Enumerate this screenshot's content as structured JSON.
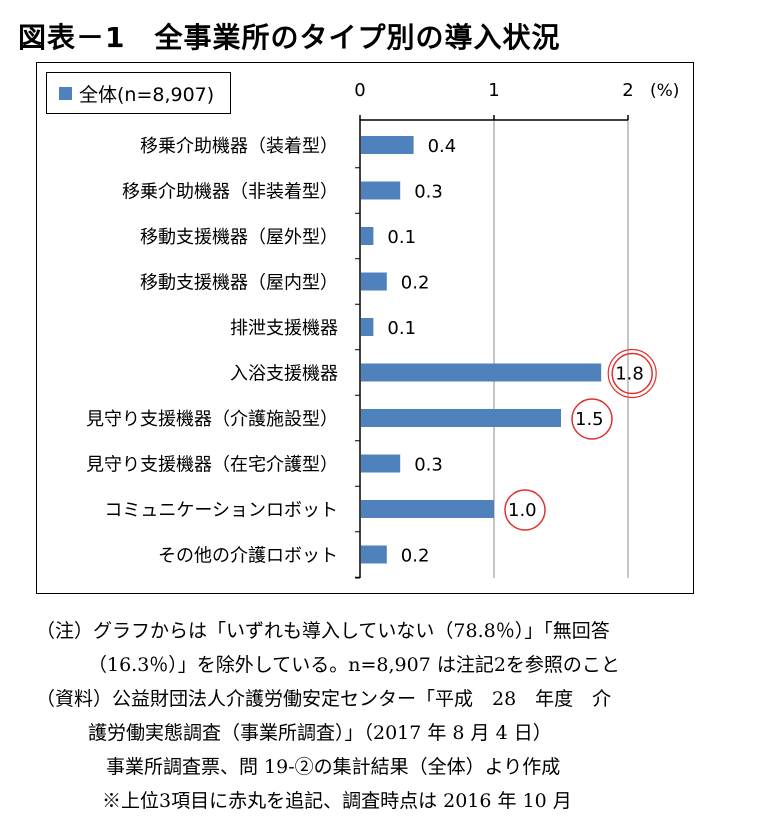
{
  "title": "図表－1　全事業所のタイプ別の導入状況",
  "legend": {
    "label": "全体(n=8,907)",
    "color": "#4f81bd"
  },
  "chart_data": {
    "type": "bar",
    "orientation": "horizontal",
    "categories": [
      "移乗介助機器（装着型）",
      "移乗介助機器（非装着型）",
      "移動支援機器（屋外型）",
      "移動支援機器（屋内型）",
      "排泄支援機器",
      "入浴支援機器",
      "見守り支援機器（介護施設型）",
      "見守り支援機器（在宅介護型）",
      "コミュニケーションロボット",
      "その他の介護ロボット"
    ],
    "series": [
      {
        "name": "全体(n=8,907)",
        "values": [
          0.4,
          0.3,
          0.1,
          0.2,
          0.1,
          1.8,
          1.5,
          0.3,
          1.0,
          0.2
        ]
      }
    ],
    "value_labels": [
      "0.4",
      "0.3",
      "0.1",
      "0.2",
      "0.1",
      "1.8",
      "1.5",
      "0.3",
      "1.0",
      "0.2"
    ],
    "xlim": [
      0,
      2
    ],
    "xticks": [
      "0",
      "1",
      "2"
    ],
    "xunit": "(%)",
    "grid": true,
    "legend_position": "top-left",
    "highlighted": [
      5,
      6,
      8
    ],
    "highlight_color": "#e0312f",
    "bar_color": "#4f81bd"
  },
  "notes": [
    "（注）グラフからは「いずれも導入していない（78.8％）」「無回答",
    "（16.3％）」を除外している。n=8,907 は注記2を参照のこと",
    "（資料）公益財団法人介護労働安定センター「平成　28　年度　介",
    "護労働実態調査（事業所調査）」（2017 年 8 月 4 日）",
    "事業所調査票、問 19-②の集計結果（全体）より作成",
    "※上位3項目に赤丸を追記、調査時点は 2016 年 10 月"
  ]
}
